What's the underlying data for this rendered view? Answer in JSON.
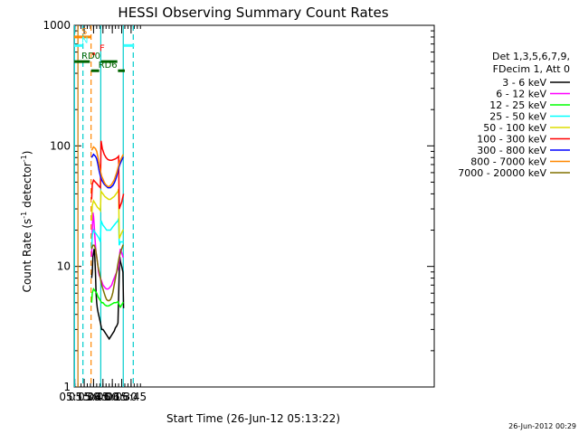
{
  "chart_data": {
    "type": "line",
    "title": "HESSI Observing Summary Count Rates",
    "xlabel": "Start Time (26-Jun-12 05:13:22)",
    "ylabel_main": "Count Rate (s",
    "ylabel_sup1": "-1",
    "ylabel_mid": " detector",
    "ylabel_sup2": "-1",
    "ylabel_end": ")",
    "footer": "26-Jun-2012 00:29",
    "x_range_min": [
      314,
      890
    ],
    "y_log": true,
    "y_range": [
      1,
      1000
    ],
    "x_ticks": [
      {
        "min": 315,
        "label": "05:15"
      },
      {
        "min": 330,
        "label": "05:30"
      },
      {
        "min": 345,
        "label": "05:45"
      },
      {
        "min": 360,
        "label": "06:00"
      },
      {
        "min": 375,
        "label": "06:15"
      },
      {
        "min": 390,
        "label": "06:30"
      },
      {
        "min": 405,
        "label": "06:45"
      }
    ],
    "y_ticks": [
      {
        "value": 1,
        "label": "1"
      },
      {
        "value": 10,
        "label": "10"
      },
      {
        "value": 100,
        "label": "100"
      },
      {
        "value": 1000,
        "label": "1000"
      }
    ],
    "legend_header": [
      "Det 1,3,5,6,7,9,",
      "FDecim 1, Att 0"
    ],
    "series": [
      {
        "name": "3 - 6 keV",
        "color": "#000000",
        "points": [
          [
            342,
            8
          ],
          [
            343,
            9
          ],
          [
            344,
            12
          ],
          [
            345,
            13
          ],
          [
            346,
            14
          ],
          [
            347,
            12
          ],
          [
            348,
            9
          ],
          [
            349,
            6
          ],
          [
            350,
            5
          ],
          [
            351,
            4.5
          ],
          [
            352,
            4.2
          ],
          [
            353,
            4
          ],
          [
            354,
            3.8
          ],
          [
            355,
            3.6
          ],
          [
            356,
            3.4
          ],
          [
            357,
            3.2
          ],
          [
            358,
            3
          ],
          [
            360,
            3
          ],
          [
            362,
            2.9
          ],
          [
            364,
            2.8
          ],
          [
            366,
            2.7
          ],
          [
            368,
            2.6
          ],
          [
            370,
            2.5
          ],
          [
            372,
            2.6
          ],
          [
            374,
            2.7
          ],
          [
            376,
            2.8
          ],
          [
            378,
            2.9
          ],
          [
            380,
            3.1
          ],
          [
            382,
            3.2
          ],
          [
            384,
            3.4
          ],
          [
            386,
            9
          ],
          [
            387,
            12
          ],
          [
            388,
            11
          ],
          [
            390,
            10
          ],
          [
            392,
            9
          ],
          [
            393,
            4.5
          ]
        ]
      },
      {
        "name": "6 - 12 keV",
        "color": "#ff00ff",
        "points": [
          [
            342,
            12
          ],
          [
            343,
            20
          ],
          [
            344,
            28
          ],
          [
            345,
            26
          ],
          [
            346,
            22
          ],
          [
            347,
            18
          ],
          [
            348,
            15
          ],
          [
            349,
            13
          ],
          [
            350,
            12
          ],
          [
            351,
            11
          ],
          [
            352,
            10
          ],
          [
            353,
            9
          ],
          [
            354,
            8.5
          ],
          [
            356,
            8
          ],
          [
            358,
            7.5
          ],
          [
            360,
            7
          ],
          [
            362,
            6.8
          ],
          [
            364,
            6.6
          ],
          [
            366,
            6.5
          ],
          [
            368,
            6.5
          ],
          [
            370,
            6.6
          ],
          [
            372,
            6.8
          ],
          [
            374,
            7
          ],
          [
            376,
            7.5
          ],
          [
            378,
            8
          ],
          [
            380,
            8.5
          ],
          [
            382,
            9
          ],
          [
            384,
            9.5
          ],
          [
            385,
            10
          ],
          [
            386,
            11
          ],
          [
            387,
            13
          ],
          [
            388,
            14
          ],
          [
            390,
            13
          ],
          [
            392,
            12
          ],
          [
            393,
            12
          ]
        ]
      },
      {
        "name": "12 - 25 keV",
        "color": "#00ff00",
        "points": [
          [
            342,
            5
          ],
          [
            343,
            6
          ],
          [
            345,
            6.5
          ],
          [
            348,
            6.2
          ],
          [
            350,
            6
          ],
          [
            352,
            5.6
          ],
          [
            355,
            5.3
          ],
          [
            358,
            5
          ],
          [
            360,
            5
          ],
          [
            363,
            4.8
          ],
          [
            366,
            4.7
          ],
          [
            369,
            4.7
          ],
          [
            372,
            4.8
          ],
          [
            375,
            4.9
          ],
          [
            378,
            5
          ],
          [
            381,
            5
          ],
          [
            384,
            5.1
          ],
          [
            386,
            4.8
          ],
          [
            388,
            4.6
          ],
          [
            390,
            4.8
          ],
          [
            392,
            5
          ],
          [
            393,
            5
          ]
        ]
      },
      {
        "name": "25 - 50 keV",
        "color": "#00ffff",
        "points": [
          [
            342,
            14
          ],
          [
            343,
            18
          ],
          [
            345,
            20
          ],
          [
            348,
            19
          ],
          [
            351,
            18
          ],
          [
            354,
            17
          ],
          [
            356,
            16
          ],
          [
            357,
            24
          ],
          [
            360,
            22
          ],
          [
            363,
            21
          ],
          [
            366,
            20
          ],
          [
            369,
            20
          ],
          [
            372,
            20
          ],
          [
            375,
            21
          ],
          [
            378,
            22
          ],
          [
            381,
            23
          ],
          [
            384,
            24
          ],
          [
            385,
            25
          ],
          [
            386,
            15
          ],
          [
            388,
            16
          ],
          [
            390,
            16
          ],
          [
            392,
            16
          ],
          [
            393,
            16
          ]
        ]
      },
      {
        "name": "50 - 100 keV",
        "color": "#dddd00",
        "points": [
          [
            342,
            24
          ],
          [
            343,
            32
          ],
          [
            345,
            35
          ],
          [
            348,
            33
          ],
          [
            351,
            31
          ],
          [
            354,
            30
          ],
          [
            356,
            29
          ],
          [
            357,
            42
          ],
          [
            360,
            40
          ],
          [
            363,
            38
          ],
          [
            366,
            37
          ],
          [
            369,
            36
          ],
          [
            372,
            36
          ],
          [
            375,
            37
          ],
          [
            378,
            38
          ],
          [
            381,
            40
          ],
          [
            384,
            42
          ],
          [
            385,
            44
          ],
          [
            386,
            17
          ],
          [
            388,
            18
          ],
          [
            390,
            19
          ],
          [
            392,
            20
          ],
          [
            393,
            20
          ]
        ]
      },
      {
        "name": "100 - 300 keV",
        "color": "#ff0000",
        "points": [
          [
            342,
            36
          ],
          [
            343,
            48
          ],
          [
            345,
            52
          ],
          [
            348,
            50
          ],
          [
            351,
            48
          ],
          [
            354,
            46
          ],
          [
            356,
            45
          ],
          [
            357,
            110
          ],
          [
            359,
            95
          ],
          [
            362,
            85
          ],
          [
            365,
            80
          ],
          [
            368,
            77
          ],
          [
            371,
            76
          ],
          [
            374,
            76
          ],
          [
            377,
            77
          ],
          [
            380,
            78
          ],
          [
            383,
            80
          ],
          [
            385,
            82
          ],
          [
            386,
            30
          ],
          [
            388,
            32
          ],
          [
            390,
            34
          ],
          [
            392,
            38
          ],
          [
            393,
            40
          ]
        ]
      },
      {
        "name": "300 - 800 keV",
        "color": "#0000ff",
        "points": [
          [
            342,
            80
          ],
          [
            345,
            85
          ],
          [
            348,
            82
          ],
          [
            350,
            78
          ],
          [
            352,
            70
          ],
          [
            354,
            62
          ],
          [
            356,
            56
          ],
          [
            358,
            52
          ],
          [
            360,
            50
          ],
          [
            362,
            48
          ],
          [
            364,
            47
          ],
          [
            366,
            46
          ],
          [
            368,
            45
          ],
          [
            370,
            45
          ],
          [
            372,
            45
          ],
          [
            374,
            46
          ],
          [
            376,
            47
          ],
          [
            378,
            49
          ],
          [
            380,
            52
          ],
          [
            382,
            56
          ],
          [
            384,
            62
          ],
          [
            386,
            68
          ],
          [
            388,
            72
          ],
          [
            390,
            76
          ],
          [
            392,
            80
          ],
          [
            393,
            80
          ]
        ]
      },
      {
        "name": "800 - 7000 keV",
        "color": "#ff8800",
        "points": [
          [
            342,
            92
          ],
          [
            345,
            98
          ],
          [
            348,
            95
          ],
          [
            350,
            90
          ],
          [
            352,
            80
          ],
          [
            354,
            70
          ],
          [
            356,
            62
          ],
          [
            358,
            56
          ],
          [
            360,
            53
          ],
          [
            362,
            50
          ],
          [
            364,
            48
          ],
          [
            366,
            47
          ],
          [
            368,
            46
          ],
          [
            370,
            46
          ],
          [
            372,
            47
          ],
          [
            374,
            48
          ],
          [
            376,
            50
          ],
          [
            378,
            52
          ],
          [
            380,
            56
          ],
          [
            382,
            60
          ],
          [
            384,
            66
          ],
          [
            386,
            72
          ],
          [
            388,
            76
          ],
          [
            390,
            80
          ],
          [
            392,
            84
          ],
          [
            393,
            84
          ]
        ]
      },
      {
        "name": "7000 - 20000 keV",
        "color": "#807000",
        "points": [
          [
            342,
            14
          ],
          [
            344,
            15
          ],
          [
            346,
            15
          ],
          [
            348,
            14
          ],
          [
            350,
            12
          ],
          [
            352,
            10
          ],
          [
            354,
            9
          ],
          [
            356,
            8
          ],
          [
            358,
            7
          ],
          [
            360,
            6.5
          ],
          [
            362,
            6
          ],
          [
            364,
            5.6
          ],
          [
            366,
            5.3
          ],
          [
            368,
            5.2
          ],
          [
            370,
            5.2
          ],
          [
            372,
            5.3
          ],
          [
            374,
            5.6
          ],
          [
            376,
            6.1
          ],
          [
            378,
            7
          ],
          [
            380,
            8
          ],
          [
            382,
            9
          ],
          [
            384,
            10.5
          ],
          [
            386,
            12
          ],
          [
            388,
            13
          ],
          [
            390,
            14
          ],
          [
            392,
            15
          ],
          [
            393,
            15
          ]
        ]
      }
    ],
    "flag_bars": [
      {
        "label": "S",
        "color": "#ff8800",
        "y_value": 800,
        "segments": [
          [
            314,
            341
          ]
        ]
      },
      {
        "label": "N",
        "color": "#33ffff",
        "y_value": 680,
        "segments": [
          [
            314,
            328
          ],
          [
            393,
            410
          ]
        ]
      },
      {
        "label": "F",
        "color": "#ff0000",
        "y_value": 580,
        "segments": [
          [
            343,
            347
          ]
        ]
      },
      {
        "label": "RD0",
        "color": "#006400",
        "y_value": 500,
        "segments": [
          [
            314,
            339
          ],
          [
            357,
            383
          ]
        ]
      },
      {
        "label": "RD6",
        "color": "#006400",
        "y_value": 420,
        "segments": [
          [
            341,
            354
          ],
          [
            384,
            395
          ]
        ]
      }
    ],
    "vlines": [
      {
        "min": 314.5,
        "color": "#00cccc",
        "style": "solid"
      },
      {
        "min": 320,
        "color": "#cc7700",
        "style": "solid"
      },
      {
        "min": 328,
        "color": "#00cccc",
        "style": "dashed"
      },
      {
        "min": 341,
        "color": "#ff8800",
        "style": "dashed"
      },
      {
        "min": 356.5,
        "color": "#00cccc",
        "style": "solid"
      },
      {
        "min": 392.5,
        "color": "#00cccc",
        "style": "solid"
      },
      {
        "min": 408.5,
        "color": "#00cccc",
        "style": "dashed"
      }
    ]
  }
}
